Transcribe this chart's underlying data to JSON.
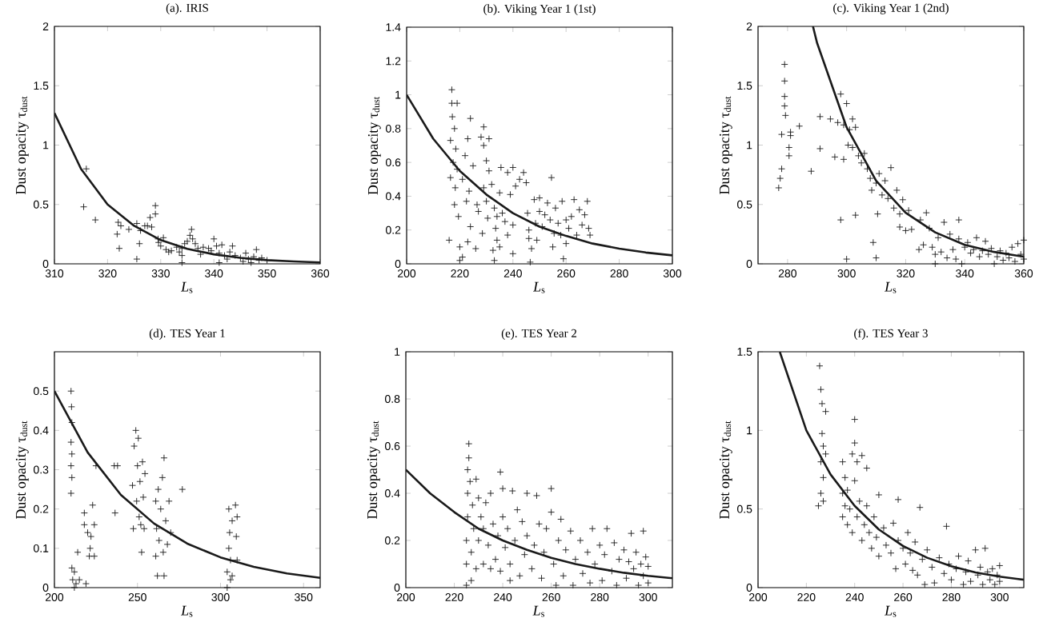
{
  "chart_data": [
    {
      "type": "scatter",
      "title": "(a). IRIS",
      "xlabel": "*L*$_{s}$",
      "ylabel": "Dust opacity τ$_{dust}$",
      "xlim": [
        310,
        360
      ],
      "ylim": [
        0,
        2
      ],
      "xticks": [
        310,
        320,
        330,
        340,
        350,
        360
      ],
      "yticks": [
        0,
        0.5,
        1,
        1.5,
        2
      ],
      "marker": "cross",
      "series": [
        {
          "color": "#1a1a1a",
          "x": [
            315.5,
            316,
            317.7,
            321.8,
            322,
            322.2,
            322.5,
            324,
            325.5,
            325.5,
            326,
            326.2,
            327,
            327.5,
            328,
            328.3,
            329,
            329,
            329.5,
            329.6,
            330,
            330.5,
            331,
            331.5,
            332,
            333,
            333.5,
            334,
            334,
            334,
            334.5,
            335,
            335.5,
            335.8,
            336,
            336.5,
            337,
            337.5,
            338,
            339,
            339.5,
            340,
            340.5,
            341,
            341,
            341.5,
            342,
            342.5,
            343,
            343.5,
            344,
            345,
            345.5,
            346,
            346.5,
            347,
            347.5,
            348,
            348.5,
            349,
            350
          ],
          "values": [
            0.48,
            0.8,
            0.37,
            0.25,
            0.35,
            0.13,
            0.32,
            0.29,
            0.34,
            0.04,
            0.17,
            0.28,
            0.32,
            0.32,
            0.39,
            0.31,
            0.49,
            0.42,
            0.21,
            0.18,
            0.15,
            0.22,
            0.12,
            0.1,
            0.11,
            0.14,
            0.1,
            0.07,
            0.13,
            0.01,
            0.17,
            0.19,
            0.24,
            0.29,
            0.21,
            0.17,
            0.13,
            0.08,
            0.14,
            0.13,
            0.11,
            0.21,
            0.15,
            0.09,
            0.01,
            0.16,
            0.07,
            0.04,
            0.1,
            0.15,
            0.07,
            0.05,
            0.02,
            0.09,
            0.04,
            0.01,
            0.06,
            0.12,
            0.03,
            0.05,
            0.03
          ]
        },
        {
          "type": "line",
          "color": "#1a1a1a",
          "line_style": "solid",
          "marker": "none",
          "x": [
            310,
            315,
            320,
            325,
            330,
            335,
            340,
            345,
            350,
            355,
            360
          ],
          "values": [
            1.27,
            0.8,
            0.5,
            0.32,
            0.2,
            0.126,
            0.08,
            0.05,
            0.031,
            0.02,
            0.012
          ]
        }
      ]
    },
    {
      "type": "scatter",
      "title": "(b). Viking Year 1 (1st)",
      "xlabel": "*L*$_{s}$",
      "ylabel": "Dust opacity τ$_{dust}$",
      "xlim": [
        200,
        300
      ],
      "ylim": [
        0,
        1.4
      ],
      "xticks": [
        200,
        220,
        240,
        260,
        280,
        300
      ],
      "yticks": [
        0,
        0.2,
        0.4,
        0.6,
        0.8,
        1,
        1.2,
        1.4
      ],
      "marker": "cross",
      "series": [
        {
          "color": "#1a1a1a",
          "x": [
            216,
            216.5,
            216.5,
            217,
            217,
            217.2,
            217.5,
            218,
            218,
            218.3,
            218.5,
            219,
            219,
            219.5,
            220,
            220,
            221,
            221,
            222,
            222.5,
            223,
            223,
            223.5,
            224,
            224,
            225,
            226,
            226.5,
            227,
            228,
            228.5,
            229,
            229,
            229,
            230,
            230,
            230.5,
            231,
            231,
            232,
            232.5,
            233,
            233,
            233.5,
            234,
            234,
            235,
            235,
            235.5,
            236,
            237,
            238,
            238,
            239,
            240,
            240,
            240,
            241,
            242.5,
            244,
            245,
            245.5,
            246,
            246,
            246.5,
            247,
            248,
            248.5,
            249,
            250,
            250,
            251,
            252,
            253,
            254,
            254.5,
            255,
            255.5,
            256,
            257,
            258,
            258.5,
            259,
            260,
            260,
            261,
            262,
            263,
            264,
            265,
            266,
            267,
            268,
            268.5,
            269
          ],
          "values": [
            0.14,
            0.51,
            0.73,
            0.95,
            1.03,
            0.87,
            0.6,
            0.35,
            0.8,
            0.45,
            0.68,
            0.95,
            0.56,
            0.28,
            0.1,
            0.02,
            0.04,
            0.5,
            0.64,
            0.37,
            0.13,
            0.74,
            0.43,
            0.86,
            0.22,
            0.58,
            0.09,
            0.35,
            0.31,
            0.75,
            0.18,
            0.81,
            0.7,
            0.45,
            0.61,
            0.37,
            0.27,
            0.55,
            0.74,
            0.47,
            0.08,
            0.33,
            0.02,
            0.21,
            0.28,
            0.14,
            0.1,
            0.42,
            0.57,
            0.3,
            0.25,
            0.17,
            0.54,
            0.41,
            0.57,
            0.23,
            0.06,
            0.46,
            0.5,
            0.54,
            0.48,
            0.3,
            0.15,
            0.2,
            0.01,
            0.09,
            0.38,
            0.24,
            0.14,
            0.39,
            0.31,
            0.22,
            0.29,
            0.36,
            0.26,
            0.51,
            0.1,
            0.18,
            0.33,
            0.24,
            0.17,
            0.37,
            0.03,
            0.12,
            0.26,
            0.21,
            0.28,
            0.38,
            0.17,
            0.32,
            0.23,
            0.29,
            0.37,
            0.21,
            0.17
          ]
        },
        {
          "type": "line",
          "color": "#1a1a1a",
          "line_style": "solid",
          "marker": "none",
          "x": [
            200,
            210,
            220,
            230,
            240,
            250,
            260,
            270,
            280,
            290,
            300
          ],
          "values": [
            1.0,
            0.74,
            0.55,
            0.41,
            0.3,
            0.22,
            0.165,
            0.12,
            0.09,
            0.067,
            0.05
          ]
        }
      ]
    },
    {
      "type": "scatter",
      "title": "(c). Viking Year 1 (2nd)",
      "xlabel": "*L*$_{s}$",
      "ylabel": "Dust opacity τ$_{dust}$",
      "xlim": [
        270,
        360
      ],
      "ylim": [
        0,
        2
      ],
      "xticks": [
        280,
        300,
        320,
        340,
        360
      ],
      "yticks": [
        0,
        0.5,
        1,
        1.5,
        2
      ],
      "marker": "cross",
      "series": [
        {
          "color": "#1a1a1a",
          "x": [
            277,
            277.5,
            278,
            278,
            279,
            279,
            279,
            279,
            279.3,
            280.5,
            280.5,
            281,
            281,
            284,
            288,
            291,
            291,
            294.5,
            296,
            297,
            298,
            298,
            299,
            299,
            300,
            300,
            300.5,
            301,
            302,
            302,
            303,
            303,
            304,
            305,
            306,
            307,
            308,
            308.5,
            309,
            310,
            310,
            310.5,
            311,
            312,
            313,
            314,
            315,
            316,
            317,
            318,
            318,
            319,
            320,
            321,
            322,
            324.5,
            325,
            326,
            327,
            328,
            329,
            330,
            330,
            331,
            332,
            333,
            334,
            335,
            336,
            337,
            338,
            338,
            339,
            340,
            341,
            342,
            343,
            344,
            345,
            346,
            347,
            348,
            349,
            350,
            351,
            352,
            353,
            354,
            355,
            356,
            357,
            358,
            359,
            360,
            360
          ],
          "values": [
            0.64,
            0.72,
            0.8,
            1.09,
            1.68,
            1.54,
            1.41,
            1.33,
            1.25,
            0.91,
            0.98,
            1.08,
            1.11,
            1.16,
            0.78,
            1.24,
            0.97,
            1.22,
            0.9,
            1.19,
            1.43,
            0.37,
            0.88,
            1.17,
            1.35,
            0.04,
            1.0,
            1.13,
            1.22,
            0.98,
            0.41,
            1.15,
            0.91,
            0.85,
            0.93,
            0.8,
            0.72,
            0.62,
            0.18,
            0.68,
            0.05,
            0.42,
            0.76,
            0.58,
            0.7,
            0.55,
            0.81,
            0.47,
            0.62,
            0.42,
            0.31,
            0.54,
            0.28,
            0.45,
            0.29,
            0.12,
            0.37,
            0.16,
            0.43,
            0.3,
            0.14,
            0.08,
            0.0,
            0.22,
            0.1,
            0.35,
            0.05,
            0.25,
            0.12,
            0.04,
            0.37,
            0.21,
            0.0,
            0.14,
            0.18,
            0.09,
            0.12,
            0.22,
            0.06,
            0.11,
            0.19,
            0.08,
            0.13,
            0.0,
            0.06,
            0.11,
            0.03,
            0.09,
            0.05,
            0.14,
            0.02,
            0.17,
            0.08,
            0.2,
            0.04
          ]
        },
        {
          "type": "line",
          "color": "#1a1a1a",
          "line_style": "solid",
          "marker": "none",
          "x": [
            288.6,
            290,
            300,
            310,
            320,
            330,
            340,
            350,
            360
          ],
          "values": [
            2.0,
            1.86,
            1.15,
            0.7,
            0.43,
            0.265,
            0.16,
            0.1,
            0.06
          ]
        }
      ]
    },
    {
      "type": "scatter",
      "title": "(d). TES Year 1",
      "xlabel": "*L*$_{s}$",
      "ylabel": "Dust opacity τ$_{dust}$",
      "xlim": [
        200,
        360
      ],
      "ylim": [
        0,
        0.6
      ],
      "xticks": [
        200,
        250,
        300,
        350
      ],
      "yticks": [
        0,
        0.1,
        0.2,
        0.3,
        0.4,
        0.5
      ],
      "marker": "cross",
      "series": [
        {
          "color": "#1a1a1a",
          "x": [
            210,
            210.3,
            210.5,
            210,
            210.5,
            210,
            210.5,
            210,
            210.5,
            211,
            212,
            212,
            213,
            214,
            215,
            218,
            218,
            219,
            220,
            221,
            221.5,
            222,
            223,
            224,
            224,
            225,
            236,
            236.5,
            238,
            247,
            247.5,
            248,
            249,
            249.5,
            250,
            250.5,
            251,
            251.5,
            252,
            252.5,
            253,
            253.5,
            254,
            254.5,
            261,
            261,
            261.5,
            262,
            262.5,
            263,
            264,
            265,
            265.5,
            266,
            266,
            267,
            268,
            269,
            270,
            277,
            304,
            304,
            305,
            305,
            305.5,
            306,
            306,
            307,
            307,
            309,
            309.5,
            310,
            310
          ],
          "values": [
            0.5,
            0.46,
            0.42,
            0.37,
            0.34,
            0.31,
            0.28,
            0.24,
            0.05,
            0.02,
            0.0,
            0.04,
            0.01,
            0.09,
            0.02,
            0.19,
            0.16,
            0.01,
            0.14,
            0.08,
            0.1,
            0.13,
            0.21,
            0.16,
            0.08,
            0.31,
            0.31,
            0.19,
            0.31,
            0.26,
            0.15,
            0.36,
            0.4,
            0.22,
            0.31,
            0.38,
            0.18,
            0.27,
            0.16,
            0.09,
            0.32,
            0.23,
            0.15,
            0.29,
            0.08,
            0.22,
            0.15,
            0.03,
            0.25,
            0.12,
            0.2,
            0.28,
            0.09,
            0.33,
            0.03,
            0.17,
            0.11,
            0.22,
            0.14,
            0.25,
            0.0,
            0.04,
            0.1,
            0.2,
            0.14,
            0.07,
            0.02,
            0.17,
            0.03,
            0.21,
            0.13,
            0.07,
            0.18
          ]
        },
        {
          "type": "line",
          "color": "#1a1a1a",
          "line_style": "solid",
          "marker": "none",
          "x": [
            200,
            220,
            240,
            260,
            280,
            300,
            320,
            340,
            360
          ],
          "values": [
            0.5,
            0.344,
            0.236,
            0.163,
            0.112,
            0.077,
            0.053,
            0.036,
            0.025
          ]
        }
      ]
    },
    {
      "type": "scatter",
      "title": "(e). TES Year 2",
      "xlabel": "*L*$_{s}$",
      "ylabel": "Dust opacity τ$_{dust}$",
      "xlim": [
        200,
        310
      ],
      "ylim": [
        0,
        1
      ],
      "xticks": [
        200,
        220,
        240,
        260,
        280,
        300
      ],
      "yticks": [
        0,
        0.2,
        0.4,
        0.6,
        0.8,
        1
      ],
      "marker": "cross",
      "series": [
        {
          "type": "line",
          "color": "#1a1a1a",
          "line_style": "solid",
          "marker": "none",
          "x": [
            200,
            210,
            220,
            230,
            240,
            250,
            260,
            270,
            280,
            290,
            300,
            310
          ],
          "values": [
            0.5,
            0.4,
            0.32,
            0.25,
            0.2,
            0.16,
            0.126,
            0.1,
            0.08,
            0.063,
            0.05,
            0.04
          ]
        },
        {
          "color": "#1a1a1a",
          "x": [
            225,
            225,
            225,
            225.5,
            225.5,
            225.5,
            226,
            226,
            226.5,
            227,
            227,
            227.5,
            228,
            229,
            229,
            230,
            230,
            231,
            232,
            232,
            233,
            234,
            235,
            235,
            236,
            237,
            238,
            239,
            239,
            240,
            240,
            241,
            242,
            243,
            243,
            244,
            245,
            246,
            247,
            248,
            249,
            250,
            250,
            252,
            253,
            254,
            255,
            256,
            257,
            258,
            260,
            260,
            261,
            262,
            263,
            264,
            265,
            266,
            268,
            269,
            270,
            272,
            273,
            275,
            276,
            277,
            278,
            280,
            281,
            282,
            283,
            285,
            286,
            287,
            288,
            290,
            291,
            292,
            293,
            294,
            295,
            296,
            297,
            298,
            298,
            299,
            300,
            300
          ],
          "values": [
            0.01,
            0.1,
            0.2,
            0.3,
            0.4,
            0.5,
            0.55,
            0.61,
            0.45,
            0.03,
            0.15,
            0.35,
            0.25,
            0.46,
            0.08,
            0.38,
            0.2,
            0.3,
            0.1,
            0.25,
            0.36,
            0.18,
            0.08,
            0.4,
            0.27,
            0.12,
            0.22,
            0.49,
            0.07,
            0.42,
            0.3,
            0.17,
            0.25,
            0.03,
            0.1,
            0.41,
            0.2,
            0.33,
            0.05,
            0.28,
            0.14,
            0.4,
            0.22,
            0.08,
            0.18,
            0.39,
            0.27,
            0.04,
            0.15,
            0.25,
            0.42,
            0.32,
            0.1,
            0.01,
            0.2,
            0.29,
            0.05,
            0.16,
            0.24,
            0.01,
            0.12,
            0.2,
            0.06,
            0.15,
            0.02,
            0.25,
            0.1,
            0.18,
            0.03,
            0.14,
            0.25,
            0.07,
            0.19,
            0.01,
            0.12,
            0.16,
            0.04,
            0.11,
            0.23,
            0.08,
            0.15,
            0.01,
            0.1,
            0.24,
            0.05,
            0.13,
            0.02,
            0.09
          ]
        }
      ]
    },
    {
      "type": "scatter",
      "title": "(f). TES Year 3",
      "xlabel": "*L*$_{s}$",
      "ylabel": "Dust opacity τ$_{dust}$",
      "xlim": [
        200,
        310
      ],
      "ylim": [
        0,
        1.5
      ],
      "xticks": [
        200,
        220,
        240,
        260,
        280,
        300
      ],
      "yticks": [
        0,
        0.5,
        1,
        1.5
      ],
      "marker": "cross",
      "series": [
        {
          "color": "#1a1a1a",
          "x": [
            225,
            225.5,
            226,
            226,
            226,
            226.5,
            226.5,
            227,
            227,
            227,
            228,
            228,
            235,
            235,
            235,
            236,
            236,
            237,
            237,
            238,
            239,
            239,
            240,
            240,
            240,
            241,
            241,
            242,
            243,
            243,
            244,
            245,
            245,
            246,
            247,
            248,
            249,
            250,
            250,
            252,
            253,
            255,
            256,
            257,
            258,
            258,
            260,
            261,
            262,
            263,
            264,
            265,
            266,
            267,
            268,
            269,
            270,
            272,
            273,
            275,
            277,
            278,
            279,
            280,
            282,
            283,
            285,
            286,
            287,
            288,
            290,
            291,
            292,
            293,
            294,
            295,
            296,
            297,
            298,
            299,
            300,
            300
          ],
          "values": [
            0.52,
            1.41,
            1.26,
            0.6,
            0.8,
            1.17,
            0.98,
            0.9,
            0.55,
            0.7,
            1.12,
            0.85,
            0.8,
            0.45,
            0.6,
            0.7,
            0.52,
            0.4,
            0.62,
            0.5,
            0.85,
            0.35,
            1.07,
            0.92,
            0.68,
            0.8,
            0.45,
            0.55,
            0.84,
            0.3,
            0.4,
            0.76,
            0.52,
            0.35,
            0.25,
            0.45,
            0.32,
            0.59,
            0.2,
            0.38,
            0.27,
            0.22,
            0.41,
            0.12,
            0.56,
            0.3,
            0.25,
            0.15,
            0.35,
            0.22,
            0.11,
            0.29,
            0.08,
            0.51,
            0.18,
            0.02,
            0.24,
            0.13,
            0.03,
            0.19,
            0.09,
            0.39,
            0.15,
            0.05,
            0.12,
            0.2,
            0.02,
            0.1,
            0.17,
            0.04,
            0.24,
            0.08,
            0.13,
            0.02,
            0.25,
            0.1,
            0.05,
            0.12,
            0.02,
            0.08,
            0.14,
            0.04
          ]
        },
        {
          "type": "line",
          "color": "#1a1a1a",
          "line_style": "solid",
          "marker": "none",
          "x": [
            209,
            220,
            230,
            240,
            250,
            260,
            270,
            280,
            290,
            300,
            310
          ],
          "values": [
            1.5,
            1.0,
            0.72,
            0.52,
            0.37,
            0.265,
            0.19,
            0.136,
            0.097,
            0.07,
            0.05
          ]
        }
      ]
    }
  ]
}
